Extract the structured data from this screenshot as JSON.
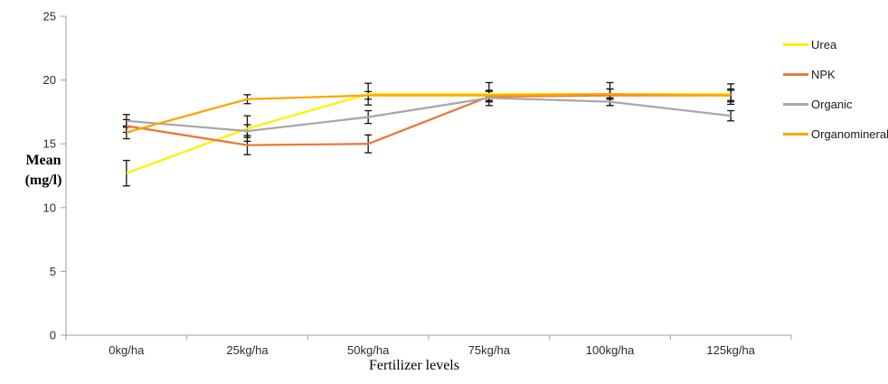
{
  "chart_data": {
    "type": "line",
    "title": "",
    "xlabel": "Fertilizer levels",
    "ylabel": "Mean (mg/l)",
    "ylabel_lines": [
      "Mean",
      "(mg/l)"
    ],
    "categories": [
      "0kg/ha",
      "25kg/ha",
      "50kg/ha",
      "75kg/ha",
      "100kg/ha",
      "125kg/ha"
    ],
    "ylim": [
      0,
      25
    ],
    "yticks": [
      0,
      5,
      10,
      15,
      20,
      25
    ],
    "grid": false,
    "legend_position": "right",
    "error_bars": true,
    "series": [
      {
        "name": "Urea",
        "color": "#FFF000",
        "values": [
          12.7,
          16.2,
          18.9,
          18.9,
          18.9,
          18.9
        ],
        "errors": [
          1.0,
          1.0,
          0.85,
          0.9,
          0.9,
          0.8
        ]
      },
      {
        "name": "NPK",
        "color": "#E8793B",
        "values": [
          16.4,
          14.9,
          15.0,
          18.7,
          18.8,
          18.8
        ],
        "errors": [
          0.5,
          0.75,
          0.7,
          0.4,
          0.5,
          0.5
        ]
      },
      {
        "name": "Organic",
        "color": "#A8A8A8",
        "values": [
          16.8,
          16.0,
          17.1,
          18.6,
          18.3,
          17.2
        ],
        "errors": [
          0.5,
          0.5,
          0.5,
          0.3,
          0.3,
          0.4
        ]
      },
      {
        "name": "Organomineral",
        "color": "#FFA400",
        "values": [
          15.9,
          18.5,
          18.8,
          18.8,
          18.9,
          18.8
        ],
        "errors": [
          0.5,
          0.35,
          0.3,
          0.4,
          0.4,
          0.4
        ]
      }
    ],
    "colors": {
      "axis": "#9C9C9C",
      "tick_label": "#2B2B2B",
      "error_bar": "#111111",
      "background": "#FFFFFF"
    }
  }
}
